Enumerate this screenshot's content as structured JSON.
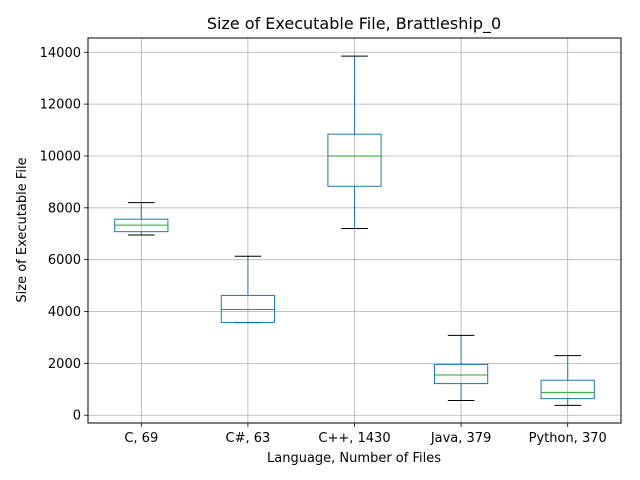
{
  "chart_data": {
    "type": "box",
    "title": "Size of Executable File, Brattleship_0",
    "xlabel": "Language, Number of Files",
    "ylabel": "Size of Executable File",
    "ylim": [
      -300,
      14550
    ],
    "yticks": [
      0,
      2000,
      4000,
      6000,
      8000,
      10000,
      12000,
      14000
    ],
    "grid": true,
    "colors": {
      "box": "#1f77b4",
      "median": "#2ca02c",
      "whisker_cap": "#000000",
      "grid": "#b0b0b0"
    },
    "categories": [
      "C, 69",
      "C#, 63",
      "C++, 1430",
      "Java, 379",
      "Python, 370"
    ],
    "boxes": [
      {
        "label": "C, 69",
        "whisker_low": 6950,
        "q1": 7080,
        "median": 7330,
        "q3": 7560,
        "whisker_high": 8200
      },
      {
        "label": "C#, 63",
        "whisker_low": 3570,
        "q1": 3580,
        "median": 4080,
        "q3": 4620,
        "whisker_high": 6130
      },
      {
        "label": "C++, 1430",
        "whisker_low": 7200,
        "q1": 8830,
        "median": 10000,
        "q3": 10840,
        "whisker_high": 13850
      },
      {
        "label": "Java, 379",
        "whisker_low": 570,
        "q1": 1220,
        "median": 1550,
        "q3": 1960,
        "whisker_high": 3080
      },
      {
        "label": "Python, 370",
        "whisker_low": 380,
        "q1": 640,
        "median": 880,
        "q3": 1350,
        "whisker_high": 2300
      }
    ]
  }
}
